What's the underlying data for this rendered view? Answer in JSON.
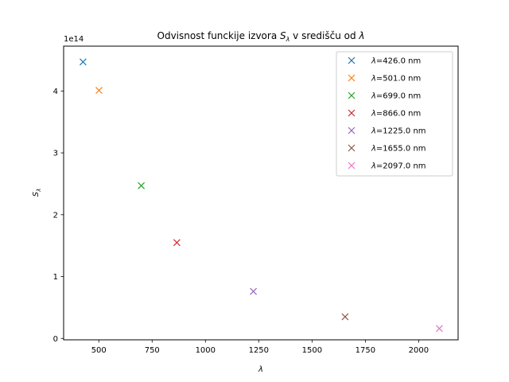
{
  "chart_data": {
    "type": "scatter",
    "title": "Odvisnost funckije izvora S_λ v središču od λ",
    "title_parts": {
      "prefix": "Odvisnost funckije izvora ",
      "symbol": "S",
      "symbol_sub": "λ",
      "middle": " v središču od ",
      "suffix_symbol": "λ"
    },
    "xlabel": "λ",
    "ylabel": "S_λ",
    "ylabel_parts": {
      "symbol": "S",
      "sub": "λ"
    },
    "xlim": [
      335,
      2185
    ],
    "ylim": [
      -0.0225,
      4.725
    ],
    "y_multiplier": "1e14",
    "xticks": [
      500,
      750,
      1000,
      1250,
      1500,
      1750,
      2000
    ],
    "yticks": [
      0,
      1,
      2,
      3,
      4
    ],
    "grid": false,
    "marker": "x",
    "legend_position": "top-right",
    "series": [
      {
        "name": "λ=426.0 nm",
        "x": 426.0,
        "y": 4.47,
        "color": "#1f77b4"
      },
      {
        "name": "λ=501.0 nm",
        "x": 501.0,
        "y": 4.01,
        "color": "#ff7f0e"
      },
      {
        "name": "λ=699.0 nm",
        "x": 699.0,
        "y": 2.47,
        "color": "#2ca02c"
      },
      {
        "name": "λ=866.0 nm",
        "x": 866.0,
        "y": 1.55,
        "color": "#d62728"
      },
      {
        "name": "λ=1225.0 nm",
        "x": 1225.0,
        "y": 0.76,
        "color": "#9467bd"
      },
      {
        "name": "λ=1655.0 nm",
        "x": 1655.0,
        "y": 0.35,
        "color": "#8c564b"
      },
      {
        "name": "λ=2097.0 nm",
        "x": 2097.0,
        "y": 0.16,
        "color": "#e377c2"
      }
    ],
    "legend_labels": [
      {
        "prefix": "λ",
        "rest": "=426.0 nm"
      },
      {
        "prefix": "λ",
        "rest": "=501.0 nm"
      },
      {
        "prefix": "λ",
        "rest": "=699.0 nm"
      },
      {
        "prefix": "λ",
        "rest": "=866.0 nm"
      },
      {
        "prefix": "λ",
        "rest": "=1225.0 nm"
      },
      {
        "prefix": "λ",
        "rest": "=1655.0 nm"
      },
      {
        "prefix": "λ",
        "rest": "=2097.0 nm"
      }
    ]
  }
}
